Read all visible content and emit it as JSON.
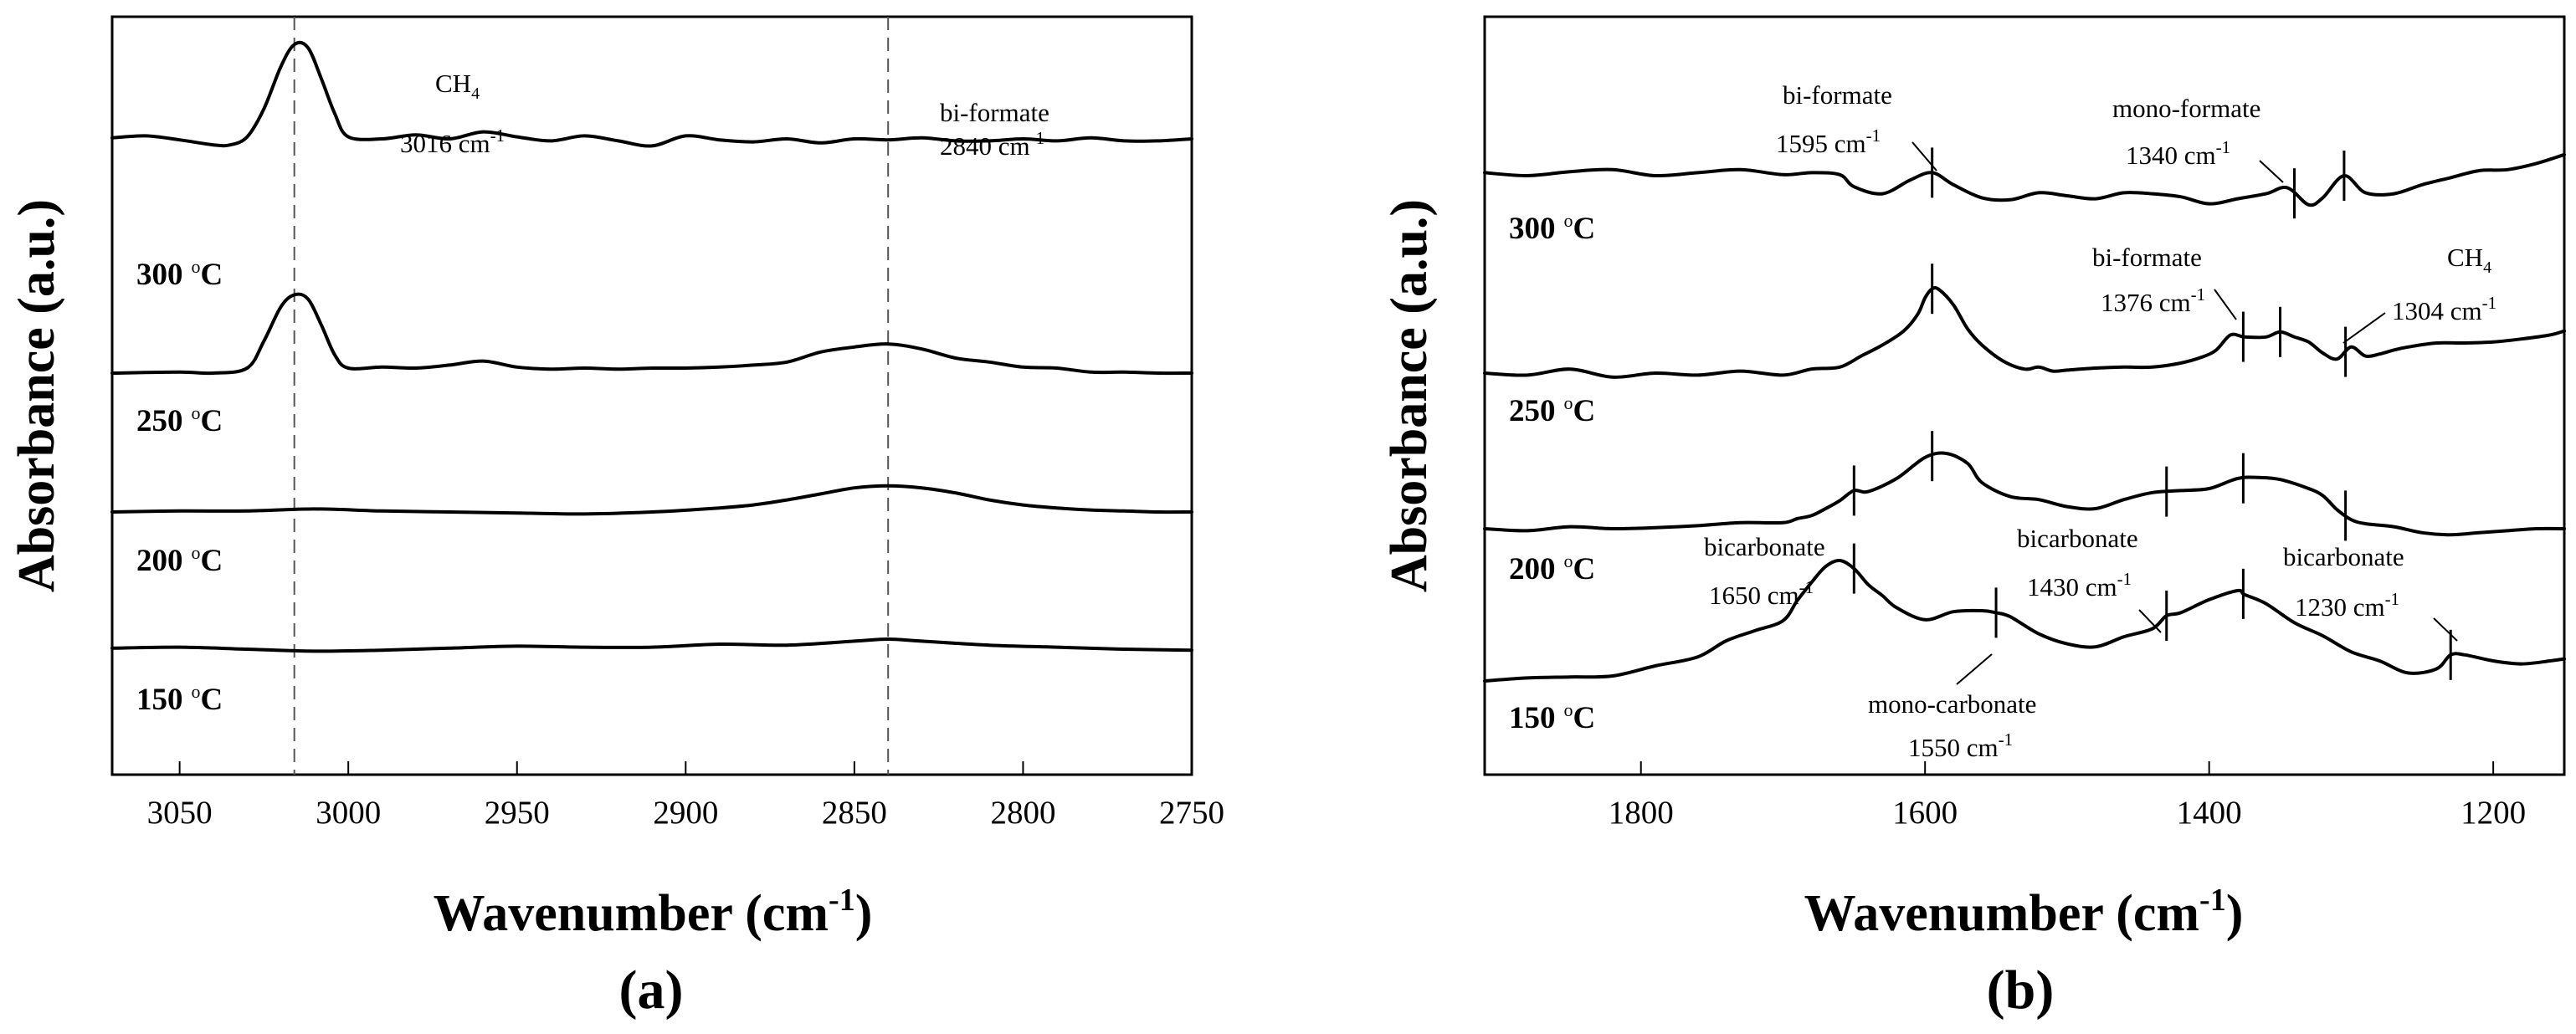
{
  "chart_data": [
    {
      "type": "line",
      "panel_label": "(a)",
      "xlabel": "Wavenumber (cm-1)",
      "ylabel": "Absorbance (a.u.)",
      "xlim": [
        3070,
        2750
      ],
      "x_reversed": true,
      "x_ticks": [
        3050,
        3000,
        2950,
        2900,
        2850,
        2800,
        2750
      ],
      "y_ticks_shown": false,
      "reference_lines": [
        3016,
        2840
      ],
      "series": [
        {
          "name": "300 oC",
          "x": [
            3070,
            3060,
            3050,
            3040,
            3035,
            3030,
            3025,
            3020,
            3016,
            3012,
            3008,
            3004,
            3000,
            2990,
            2980,
            2970,
            2960,
            2950,
            2940,
            2930,
            2920,
            2910,
            2900,
            2890,
            2880,
            2870,
            2860,
            2850,
            2840,
            2830,
            2820,
            2810,
            2800,
            2790,
            2780,
            2770,
            2760,
            2750
          ],
          "y": [
            0.81,
            0.83,
            0.79,
            0.74,
            0.74,
            0.82,
            1.1,
            1.52,
            1.74,
            1.71,
            1.4,
            1.05,
            0.82,
            0.8,
            0.84,
            0.8,
            0.87,
            0.82,
            0.78,
            0.83,
            0.78,
            0.73,
            0.83,
            0.79,
            0.77,
            0.8,
            0.76,
            0.8,
            0.79,
            0.81,
            0.78,
            0.78,
            0.8,
            0.78,
            0.81,
            0.78,
            0.78,
            0.8
          ]
        },
        {
          "name": "250 oC",
          "x": [
            3070,
            3050,
            3040,
            3030,
            3025,
            3020,
            3016,
            3012,
            3008,
            3004,
            3000,
            2990,
            2980,
            2970,
            2960,
            2950,
            2940,
            2930,
            2920,
            2910,
            2900,
            2890,
            2880,
            2870,
            2860,
            2850,
            2840,
            2830,
            2820,
            2810,
            2800,
            2790,
            2780,
            2770,
            2760,
            2750
          ],
          "y": [
            0.0,
            0.01,
            0.0,
            0.05,
            0.32,
            0.66,
            0.78,
            0.74,
            0.48,
            0.18,
            0.05,
            0.06,
            0.05,
            0.08,
            0.12,
            0.06,
            0.04,
            0.05,
            0.04,
            0.05,
            0.05,
            0.06,
            0.08,
            0.11,
            0.21,
            0.26,
            0.29,
            0.24,
            0.15,
            0.11,
            0.06,
            0.05,
            0.01,
            0.01,
            0.0,
            0.0
          ]
        },
        {
          "name": "200 oC",
          "x": [
            3070,
            3050,
            3030,
            3010,
            2990,
            2970,
            2950,
            2930,
            2910,
            2890,
            2880,
            2870,
            2860,
            2850,
            2840,
            2830,
            2820,
            2810,
            2800,
            2790,
            2780,
            2770,
            2760,
            2750
          ],
          "y": [
            0.0,
            0.01,
            0.01,
            0.03,
            0.01,
            0.0,
            -0.01,
            -0.02,
            0.0,
            0.04,
            0.07,
            0.12,
            0.18,
            0.24,
            0.26,
            0.24,
            0.19,
            0.12,
            0.07,
            0.04,
            0.02,
            0.01,
            0.0,
            0.0
          ]
        },
        {
          "name": "150 oC",
          "x": [
            3070,
            3050,
            3030,
            3010,
            2990,
            2970,
            2950,
            2930,
            2910,
            2890,
            2870,
            2850,
            2840,
            2830,
            2810,
            2790,
            2770,
            2750
          ],
          "y": [
            0.01,
            0.02,
            0.0,
            -0.02,
            -0.01,
            0.01,
            0.03,
            0.02,
            0.02,
            0.05,
            0.04,
            0.08,
            0.1,
            0.08,
            0.04,
            0.02,
            0.0,
            -0.01
          ]
        }
      ],
      "annotations": [
        {
          "text": "CH4",
          "sub": "4",
          "value": "3016 cm-1"
        },
        {
          "text": "bi-formate",
          "value": "2840 cm-1"
        }
      ]
    },
    {
      "type": "line",
      "panel_label": "(b)",
      "xlabel": "Wavenumber (cm-1)",
      "ylabel": "Absorbance (a.u.)",
      "xlim": [
        1910,
        1150
      ],
      "x_reversed": true,
      "x_ticks": [
        1800,
        1600,
        1400,
        1200
      ],
      "y_ticks_shown": false,
      "series": [
        {
          "name": "300 oC",
          "x": [
            1910,
            1880,
            1850,
            1820,
            1790,
            1760,
            1730,
            1700,
            1680,
            1660,
            1650,
            1630,
            1610,
            1595,
            1580,
            1560,
            1540,
            1520,
            1500,
            1480,
            1460,
            1440,
            1420,
            1400,
            1380,
            1360,
            1345,
            1330,
            1320,
            1305,
            1290,
            1270,
            1250,
            1230,
            1210,
            1190,
            1170,
            1150
          ],
          "y": [
            0.53,
            0.5,
            0.54,
            0.56,
            0.5,
            0.53,
            0.56,
            0.51,
            0.53,
            0.51,
            0.39,
            0.32,
            0.46,
            0.53,
            0.41,
            0.28,
            0.26,
            0.33,
            0.3,
            0.27,
            0.33,
            0.32,
            0.29,
            0.22,
            0.27,
            0.32,
            0.38,
            0.21,
            0.28,
            0.5,
            0.33,
            0.32,
            0.41,
            0.48,
            0.55,
            0.56,
            0.62,
            0.71
          ]
        },
        {
          "name": "250 oC",
          "x": [
            1910,
            1880,
            1850,
            1820,
            1790,
            1760,
            1730,
            1700,
            1680,
            1660,
            1645,
            1630,
            1615,
            1605,
            1600,
            1595,
            1590,
            1580,
            1570,
            1560,
            1545,
            1530,
            1520,
            1510,
            1500,
            1480,
            1460,
            1440,
            1420,
            1405,
            1395,
            1385,
            1375,
            1360,
            1350,
            1340,
            1330,
            1320,
            1310,
            1300,
            1290,
            1280,
            1270,
            1260,
            1240,
            1220,
            1200,
            1180,
            1160,
            1150
          ],
          "y": [
            0.0,
            -0.02,
            0.04,
            -0.04,
            0.0,
            -0.02,
            0.02,
            -0.02,
            0.04,
            0.06,
            0.17,
            0.28,
            0.42,
            0.59,
            0.75,
            0.84,
            0.83,
            0.68,
            0.44,
            0.28,
            0.12,
            0.04,
            0.06,
            0.02,
            0.03,
            0.05,
            0.06,
            0.06,
            0.1,
            0.16,
            0.23,
            0.38,
            0.36,
            0.36,
            0.41,
            0.36,
            0.31,
            0.2,
            0.14,
            0.26,
            0.17,
            0.19,
            0.23,
            0.26,
            0.3,
            0.3,
            0.31,
            0.34,
            0.38,
            0.42
          ]
        },
        {
          "name": "200 oC",
          "x": [
            1910,
            1880,
            1850,
            1820,
            1790,
            1760,
            1730,
            1700,
            1690,
            1680,
            1670,
            1660,
            1650,
            1640,
            1620,
            1600,
            1585,
            1570,
            1560,
            1540,
            1520,
            1500,
            1480,
            1460,
            1440,
            1420,
            1400,
            1380,
            1365,
            1350,
            1330,
            1320,
            1310,
            1300,
            1290,
            1270,
            1250,
            1230,
            1210,
            1190,
            1170,
            1150
          ],
          "y": [
            0.0,
            -0.02,
            0.02,
            0.0,
            0.01,
            0.03,
            0.06,
            0.06,
            0.1,
            0.13,
            0.2,
            0.28,
            0.38,
            0.37,
            0.5,
            0.71,
            0.75,
            0.65,
            0.46,
            0.32,
            0.29,
            0.22,
            0.2,
            0.29,
            0.36,
            0.38,
            0.4,
            0.5,
            0.51,
            0.49,
            0.4,
            0.33,
            0.19,
            0.09,
            0.05,
            0.02,
            -0.04,
            -0.06,
            -0.04,
            -0.02,
            0.0,
            0.0
          ]
        },
        {
          "name": "150 oC",
          "x": [
            1910,
            1880,
            1850,
            1820,
            1790,
            1760,
            1740,
            1720,
            1700,
            1690,
            1680,
            1670,
            1660,
            1650,
            1640,
            1630,
            1620,
            1600,
            1580,
            1560,
            1550,
            1540,
            1520,
            1500,
            1480,
            1460,
            1440,
            1430,
            1420,
            1400,
            1380,
            1375,
            1360,
            1340,
            1320,
            1300,
            1280,
            1260,
            1240,
            1230,
            1220,
            1200,
            1180,
            1160,
            1150
          ],
          "y": [
            0.0,
            0.03,
            0.04,
            0.05,
            0.15,
            0.24,
            0.4,
            0.5,
            0.6,
            0.8,
            0.98,
            1.14,
            1.2,
            1.12,
            0.96,
            0.85,
            0.73,
            0.61,
            0.69,
            0.7,
            0.68,
            0.64,
            0.47,
            0.37,
            0.34,
            0.44,
            0.52,
            0.65,
            0.68,
            0.81,
            0.9,
            0.86,
            0.77,
            0.58,
            0.45,
            0.29,
            0.2,
            0.08,
            0.12,
            0.26,
            0.26,
            0.2,
            0.17,
            0.2,
            0.22
          ]
        }
      ],
      "annotations": [
        {
          "text": "bi-formate",
          "value": "1595 cm-1"
        },
        {
          "text": "mono-formate",
          "value": "1340 cm-1"
        },
        {
          "text": "bi-formate",
          "value": "1376 cm-1"
        },
        {
          "text": "CH4",
          "sub": "4",
          "value": "1304 cm-1"
        },
        {
          "text": "bicarbonate",
          "value": "1650 cm-1"
        },
        {
          "text": "bicarbonate",
          "value": "1430 cm-1"
        },
        {
          "text": "bicarbonate",
          "value": "1230 cm-1"
        },
        {
          "text": "mono-carbonate",
          "value": "1550 cm-1"
        }
      ],
      "peak_markers": {
        "300 oC": [
          1595,
          1340,
          1305
        ],
        "250 oC": [
          1595,
          1376,
          1350,
          1304
        ],
        "200 oC": [
          1650,
          1595,
          1430,
          1376,
          1304
        ],
        "150 oC": [
          1650,
          1550,
          1430,
          1376,
          1230
        ]
      }
    }
  ],
  "labels": {
    "xlabel_main": "Wavenumber (cm",
    "xlabel_sup": "-1",
    "xlabel_close": ")",
    "ylabel": "Absorbance (a.u.)",
    "panel_a": "(a)",
    "panel_b": "(b)",
    "temp_num": [
      "300",
      "250",
      "200",
      "150"
    ],
    "deg_o": "o",
    "deg_C": "C",
    "cm": " cm",
    "sup": "-1",
    "ch": "CH",
    "sub4": "4"
  }
}
